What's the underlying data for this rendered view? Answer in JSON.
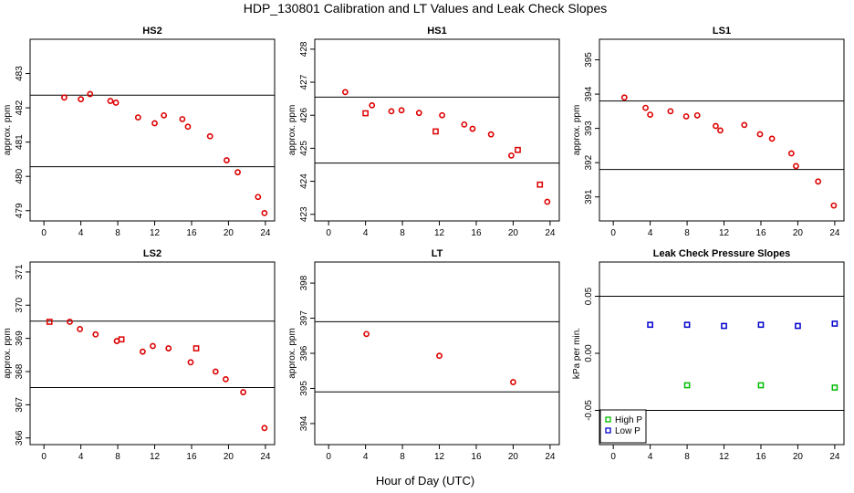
{
  "figure": {
    "title": "HDP_130801  Calibration and LT Values and Leak Check Slopes",
    "xlabel": "Hour of Day (UTC)"
  },
  "chart_data": [
    {
      "id": "hs2",
      "type": "scatter",
      "title": "HS2",
      "ylabel": "approx. ppm",
      "xlim": [
        -1.5,
        25
      ],
      "ylim": [
        478.7,
        484.0
      ],
      "xticks": [
        0,
        4,
        8,
        12,
        16,
        20,
        24
      ],
      "yticks": [
        479,
        480,
        481,
        482,
        483
      ],
      "hlines": [
        482.37,
        480.28
      ],
      "grid": false,
      "series": [
        {
          "marker": "circle",
          "color": "#dd0000",
          "x": [
            2.2,
            4.0,
            5.0,
            7.2,
            7.8,
            10.2,
            12.0,
            13.0,
            15.0,
            15.6,
            18.0,
            19.8,
            21.0,
            23.2,
            23.9
          ],
          "y": [
            482.3,
            482.25,
            482.4,
            482.2,
            482.15,
            481.72,
            481.55,
            481.78,
            481.67,
            481.45,
            481.17,
            480.47,
            480.12,
            479.4,
            478.93
          ]
        }
      ]
    },
    {
      "id": "hs1",
      "type": "scatter",
      "title": "HS1",
      "ylabel": "approx. ppm",
      "xlim": [
        -1.5,
        25
      ],
      "ylim": [
        422.8,
        428.3
      ],
      "xticks": [
        0,
        4,
        8,
        12,
        16,
        20,
        24
      ],
      "yticks": [
        423,
        424,
        425,
        426,
        427,
        428
      ],
      "hlines": [
        426.55,
        424.55
      ],
      "grid": false,
      "series": [
        {
          "marker": "circle",
          "color": "#dd0000",
          "x": [
            1.8,
            4.7,
            6.8,
            7.9,
            9.8,
            12.3,
            14.7,
            15.6,
            17.6,
            19.8,
            23.7
          ],
          "y": [
            426.7,
            426.3,
            426.12,
            426.15,
            426.07,
            426.0,
            425.72,
            425.59,
            425.42,
            424.78,
            423.38
          ]
        },
        {
          "marker": "square",
          "color": "#dd0000",
          "x": [
            4.0,
            11.6,
            20.5,
            22.9
          ],
          "y": [
            426.06,
            425.51,
            424.95,
            423.9
          ]
        }
      ]
    },
    {
      "id": "ls1",
      "type": "scatter",
      "title": "LS1",
      "ylabel": "approx. ppm",
      "xlim": [
        -1.5,
        25
      ],
      "ylim": [
        390.3,
        395.6
      ],
      "xticks": [
        0,
        4,
        8,
        12,
        16,
        20,
        24
      ],
      "yticks": [
        391,
        392,
        393,
        394,
        395
      ],
      "hlines": [
        393.8,
        391.8
      ],
      "grid": false,
      "series": [
        {
          "marker": "circle",
          "color": "#dd0000",
          "x": [
            1.2,
            3.5,
            4.0,
            6.2,
            7.9,
            9.1,
            11.1,
            11.6,
            14.2,
            15.9,
            17.2,
            19.3,
            19.8,
            22.2,
            23.9
          ],
          "y": [
            393.9,
            393.6,
            393.4,
            393.5,
            393.35,
            393.38,
            393.07,
            392.94,
            393.1,
            392.83,
            392.7,
            392.27,
            391.9,
            391.45,
            390.75
          ]
        }
      ]
    },
    {
      "id": "ls2",
      "type": "scatter",
      "title": "LS2",
      "ylabel": "approx. ppm",
      "xlim": [
        -1.5,
        25
      ],
      "ylim": [
        365.8,
        371.3
      ],
      "xticks": [
        0,
        4,
        8,
        12,
        16,
        20,
        24
      ],
      "yticks": [
        366,
        367,
        368,
        369,
        370,
        371
      ],
      "hlines": [
        369.52,
        367.52
      ],
      "grid": false,
      "series": [
        {
          "marker": "circle",
          "color": "#dd0000",
          "x": [
            2.8,
            3.9,
            5.6,
            7.9,
            10.7,
            11.8,
            13.5,
            15.9,
            18.6,
            19.7,
            21.6,
            23.9
          ],
          "y": [
            369.5,
            369.28,
            369.12,
            368.92,
            368.6,
            368.77,
            368.7,
            368.28,
            368.0,
            367.77,
            367.38,
            366.3
          ]
        },
        {
          "marker": "square",
          "color": "#dd0000",
          "x": [
            0.6,
            8.4,
            16.5
          ],
          "y": [
            369.5,
            368.97,
            368.7
          ]
        }
      ]
    },
    {
      "id": "lt",
      "type": "scatter",
      "title": "LT",
      "ylabel": "approx. ppm",
      "xlim": [
        -1.5,
        25
      ],
      "ylim": [
        393.4,
        398.6
      ],
      "xticks": [
        0,
        4,
        8,
        12,
        16,
        20,
        24
      ],
      "yticks": [
        394,
        395,
        396,
        397,
        398
      ],
      "hlines": [
        396.9,
        394.9
      ],
      "grid": false,
      "series": [
        {
          "marker": "circle",
          "color": "#dd0000",
          "x": [
            4.1,
            12.0,
            20.0
          ],
          "y": [
            396.55,
            395.93,
            395.18
          ]
        }
      ]
    },
    {
      "id": "leak",
      "type": "scatter",
      "title": "Leak Check Pressure Slopes",
      "ylabel": "kPa per min.",
      "xlim": [
        -1.5,
        25
      ],
      "ylim": [
        -0.08,
        0.08
      ],
      "xticks": [
        0,
        4,
        8,
        12,
        16,
        20,
        24
      ],
      "yticks": [
        -0.05,
        0.0,
        0.05
      ],
      "ytick_labels": [
        "-0.05",
        "0.00",
        "0.05"
      ],
      "hlines": [
        0.05,
        -0.05
      ],
      "grid": false,
      "legend": {
        "position": "bottom-left"
      },
      "series": [
        {
          "name": "High P",
          "marker": "square",
          "color": "#00bb00",
          "x": [
            8,
            16,
            24
          ],
          "y": [
            -0.028,
            -0.028,
            -0.03
          ]
        },
        {
          "name": "Low P",
          "marker": "square",
          "color": "#0000cc",
          "x": [
            4,
            8,
            12,
            16,
            20,
            24
          ],
          "y": [
            0.025,
            0.025,
            0.024,
            0.025,
            0.024,
            0.026
          ]
        }
      ]
    }
  ]
}
